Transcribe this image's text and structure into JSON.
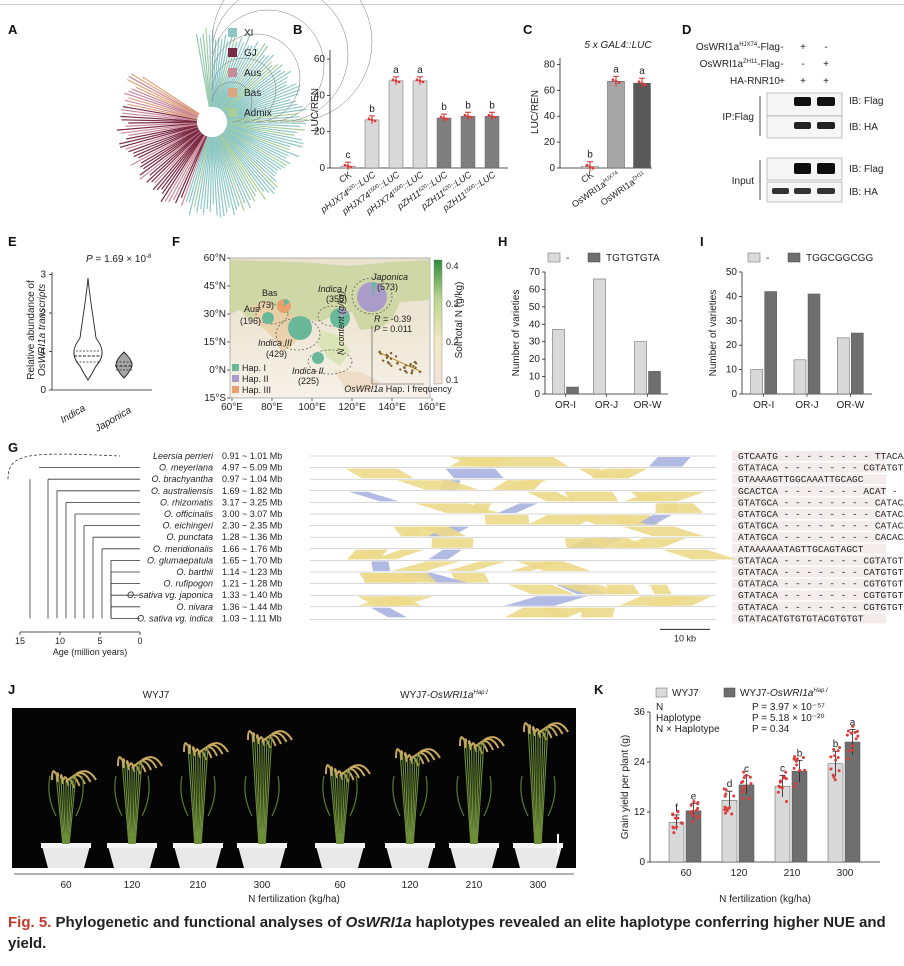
{
  "caption": {
    "fig_number": "Fig. 5.",
    "part1": "Phylogenetic and functional analyses of ",
    "gene": "OsWRI1a",
    "part2": " haplotypes revealed an elite haplotype conferring higher NUE and yield."
  },
  "panels": {
    "A": {
      "label": "A",
      "legend": [
        "XI",
        "GJ",
        "Aus",
        "Bas",
        "Admix"
      ],
      "legend_colors": [
        "#8dc7c4",
        "#7a2a45",
        "#c98a98",
        "#e0a57e",
        "#a9cf95"
      ]
    },
    "B": {
      "label": "B",
      "ylabel": "LUC/REN",
      "yticks": [
        "0",
        "20",
        "40",
        "60"
      ]
    },
    "C": {
      "label": "C",
      "title": "5 x GAL4::LUC",
      "ylabel": "LUC/REN",
      "yticks": [
        "0",
        "20",
        "40",
        "60",
        "80"
      ]
    },
    "D": {
      "label": "D",
      "rows": [
        "OsWRI1aHJX74-Flag",
        "OsWRI1aZH11-Flag",
        "HA-RNR10"
      ],
      "signs": [
        [
          "-",
          "+",
          "-"
        ],
        [
          "-",
          "-",
          "+"
        ],
        [
          "+",
          "+",
          "+"
        ]
      ],
      "ip_label": "IP:Flag",
      "input_label": "Input",
      "ib": [
        "IB: Flag",
        "IB: HA",
        "IB: Flag",
        "IB: HA"
      ]
    },
    "E": {
      "label": "E",
      "pvalue": "P = 1.69 × 10⁻⁸",
      "ylabel1": "Relative abundance of",
      "ylabel2": "OsWRI1a transcripts",
      "yticks": [
        "0",
        "1",
        "2",
        "3"
      ],
      "groups": [
        "Indica",
        "Japonica"
      ]
    },
    "F": {
      "label": "F",
      "lat_ticks": [
        "60°N",
        "45°N",
        "30°N",
        "15°N",
        "0°N",
        "15°S"
      ],
      "lon_ticks": [
        "60°E",
        "80°E",
        "100°E",
        "120°E",
        "140°E",
        "160°E"
      ],
      "regions": [
        "Japonica (573)",
        "Indica I (355)",
        "Bas (73)",
        "Aus (196)",
        "Indica III (429)",
        "Indica II (225)"
      ],
      "haps": [
        "Hap. I",
        "Hap. II",
        "Hap. III"
      ],
      "hap_colors": [
        "#6ab89a",
        "#a99cc8",
        "#e7a06e"
      ],
      "colorbar_label": "Soil total N (g/kg)",
      "colorbar_ticks": [
        "0.1",
        "0.2",
        "0.3",
        "0.4"
      ],
      "stats": [
        "R = -0.39",
        "P = 0.011"
      ],
      "inset_ylabel": "N content (g/kg)",
      "inset_xlabel": "OsWRI1a Hap. I frequency"
    },
    "H": {
      "label": "H",
      "legend": [
        "-",
        "TGTGTGTA"
      ],
      "ylabel": "Number of varieties",
      "yticks": [
        "0",
        "10",
        "20",
        "30",
        "40",
        "50",
        "60",
        "70"
      ]
    },
    "I": {
      "label": "I",
      "legend": [
        "-",
        "TGGCGGCGG"
      ],
      "ylabel": "Number of varieties",
      "yticks": [
        "0",
        "10",
        "20",
        "30",
        "40",
        "50"
      ]
    },
    "G": {
      "label": "G",
      "species": [
        "Leersia perrieri",
        "O. meyeriana",
        "O. brachyantha",
        "O. australiensis",
        "O. rhizomatis",
        "O. officinalis",
        "O. eichingeri",
        "O. punctata",
        "O. meridionalis",
        "O. glumaepatula",
        "O. barthii",
        "O. rufipogon",
        "O. sativa vg. japonica",
        "O. nivara",
        "O. sativa vg. indica"
      ],
      "ranges": [
        "0.91 ~ 1.01 Mb",
        "4.97 ~ 5.09 Mb",
        "0.97 ~ 1.04 Mb",
        "1.69 ~ 1.82 Mb",
        "3.17 ~ 3.25 Mb",
        "3.00 ~ 3.07 Mb",
        "2.30 ~ 2.35 Mb",
        "1.28 ~ 1.36 Mb",
        "1.66 ~ 1.76 Mb",
        "1.65 ~ 1.70 Mb",
        "1.14 ~ 1.23 Mb",
        "1.21 ~ 1.28 Mb",
        "1.33 ~ 1.40 Mb",
        "1.36 ~ 1.44 Mb",
        "1.03 ~ 1.11 Mb"
      ],
      "sequences": [
        "GTCAATG - - - - - - - - TTACAA",
        "GTATACA - - - - - - - CGTATGT",
        "GTAAAAGTTGGCAAATTGCAGC",
        "GCACTCA - - - - - - - ACAT - CGC",
        "GTATGCA - - - - - - - - CATACAT",
        "GTATGCA - - - - - - - - CATACAT",
        "GTATGCA - - - - - - - - CATACAT",
        "ATATGCA - - - - - - - - CACACAT",
        "ATAAAAAATAGTTGCAGTAGCT",
        "GTATACA - - - - - - - CGTATGT",
        "GTATACA - - - - - - - CATGTGT",
        "GTATACA - - - - - - - CGTGTGT",
        "GTATACA - - - - - - - CGTGTGT",
        "GTATACA - - - - - - - CGTGTGT",
        "GTATACATGTGTGTACGTGTGT"
      ],
      "age_label": "Age (million years)",
      "age_ticks": [
        "15",
        "10",
        "5",
        "0"
      ],
      "scale_bar": "10 kb"
    },
    "J": {
      "label": "J",
      "left_title": "WYJ7",
      "right_title": "WYJ7-OsWRI1aHap.I",
      "n_levels": [
        "60",
        "120",
        "210",
        "300",
        "60",
        "120",
        "210",
        "300"
      ],
      "xlabel": "N fertilization (kg/ha)"
    },
    "K": {
      "label": "K",
      "legend": [
        "WYJ7",
        "WYJ7-OsWRI1aHap.I"
      ],
      "stats_labels": [
        "N",
        "Haplotype",
        "N × Haplotype"
      ],
      "stats_values": [
        "P = 3.97 × 10⁻⁵⁷",
        "P = 5.18 × 10⁻²⁰",
        "P = 0.34"
      ],
      "ylabel": "Grain yield per plant (g)",
      "yticks": [
        "0",
        "12",
        "24",
        "36"
      ],
      "xlabel": "N fertilization (kg/ha)"
    }
  },
  "chart_data": [
    {
      "type": "bar",
      "panel": "B",
      "ylabel": "LUC/REN",
      "ylim": [
        0,
        65
      ],
      "categories": [
        "CK",
        "pHJX74⁶²⁰::LUC",
        "pHJX74¹⁵⁰⁰::LUC",
        "pHJX74¹⁵⁰⁰::LUC",
        "pZH11⁶²⁰::LUC",
        "pZH11⁶²⁰::LUC",
        "pZH11¹⁵⁰⁰::LUC"
      ],
      "values": [
        1,
        26.5,
        48,
        48,
        27.5,
        28.5,
        28.5
      ],
      "letters": [
        "c",
        "b",
        "a",
        "a",
        "b",
        "b",
        "b"
      ],
      "colors": [
        "#d9d9d9",
        "#d9d9d9",
        "#d9d9d9",
        "#d9d9d9",
        "#7f7f7f",
        "#7f7f7f",
        "#7f7f7f"
      ]
    },
    {
      "type": "bar",
      "panel": "C",
      "title": "5 x GAL4::LUC",
      "ylabel": "LUC/REN",
      "ylim": [
        0,
        85
      ],
      "categories": [
        "CK",
        "OsWRI1aHJX74",
        "OsWRI1aZH11"
      ],
      "values": [
        1,
        67,
        65.5
      ],
      "letters": [
        "b",
        "a",
        "a"
      ],
      "colors": [
        "#d9d9d9",
        "#a6a6a6",
        "#595959"
      ]
    },
    {
      "type": "bar",
      "panel": "H",
      "ylabel": "Number of varieties",
      "ylim": [
        0,
        70
      ],
      "categories": [
        "OR-I",
        "OR-J",
        "OR-W"
      ],
      "series": [
        {
          "name": "-",
          "values": [
            37,
            66,
            30
          ],
          "color": "#d9d9d9"
        },
        {
          "name": "TGTGTGTA",
          "values": [
            4,
            0,
            13
          ],
          "color": "#6f6f6f"
        }
      ]
    },
    {
      "type": "bar",
      "panel": "I",
      "ylabel": "Number of varieties",
      "ylim": [
        0,
        50
      ],
      "categories": [
        "OR-I",
        "OR-J",
        "OR-W"
      ],
      "series": [
        {
          "name": "-",
          "values": [
            10,
            14,
            23
          ],
          "color": "#d9d9d9"
        },
        {
          "name": "TGGCGGCGG",
          "values": [
            42,
            41,
            25
          ],
          "color": "#6f6f6f"
        }
      ]
    },
    {
      "type": "bar",
      "panel": "K",
      "ylabel": "Grain yield per plant (g)",
      "xlabel": "N fertilization (kg/ha)",
      "ylim": [
        0,
        36
      ],
      "categories": [
        "60",
        "120",
        "210",
        "300"
      ],
      "series": [
        {
          "name": "WYJ7",
          "values": [
            9.5,
            14.8,
            18.2,
            23.6
          ],
          "color": "#d9d9d9"
        },
        {
          "name": "WYJ7-OsWRI1aHap.I",
          "values": [
            12.3,
            18.5,
            21.8,
            28.8
          ],
          "color": "#6f6f6f"
        }
      ],
      "letters": [
        "f",
        "e",
        "d",
        "c",
        "c",
        "b",
        "b",
        "a"
      ]
    }
  ]
}
